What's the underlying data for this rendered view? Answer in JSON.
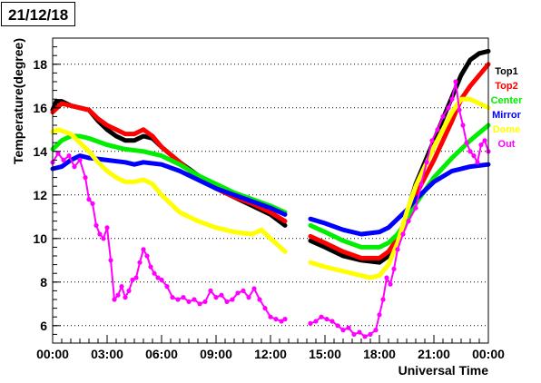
{
  "chart_data": {
    "type": "scatter",
    "title": "21/12/18",
    "xlabel": "Universal Time",
    "ylabel": "Temperature(degree)",
    "x_unit": "hours UT",
    "xlim": [
      0,
      24
    ],
    "ylim": [
      5.2,
      19.2
    ],
    "x_ticks": [
      0,
      3,
      6,
      9,
      12,
      15,
      18,
      21,
      24
    ],
    "x_tick_labels": [
      "00:00",
      "03:00",
      "06:00",
      "09:00",
      "12:00",
      "15:00",
      "18:00",
      "21:00",
      "00:00"
    ],
    "y_ticks": [
      6,
      8,
      10,
      12,
      14,
      16,
      18
    ],
    "y_tick_labels": [
      "6",
      "8",
      "10",
      "12",
      "14",
      "16",
      "18"
    ],
    "grid": "horizontal dotted",
    "legend": "right, outside plot",
    "series": [
      {
        "name": "Top1",
        "color": "#000000",
        "x": [
          0,
          0.2,
          0.5,
          1,
          1.5,
          2,
          2.5,
          3,
          3.5,
          4,
          4.5,
          5,
          5.5,
          6,
          7,
          8,
          9,
          10,
          11,
          12,
          12.8,
          null,
          14.2,
          15,
          16,
          17,
          18,
          18.5,
          19,
          19.5,
          20,
          21,
          22,
          22.5,
          23,
          23.5,
          24
        ],
        "y": [
          15.9,
          16.3,
          16.3,
          16.1,
          16.0,
          15.9,
          15.4,
          15.0,
          14.7,
          14.5,
          14.5,
          14.7,
          14.6,
          14.2,
          13.5,
          12.9,
          12.3,
          11.9,
          11.5,
          11.1,
          10.6,
          null,
          9.9,
          9.6,
          9.2,
          9.0,
          8.9,
          9.2,
          9.9,
          11.1,
          12.5,
          14.5,
          16.5,
          17.5,
          18.2,
          18.5,
          18.6
        ]
      },
      {
        "name": "Top2",
        "color": "#ff0000",
        "x": [
          0,
          0.5,
          1,
          1.5,
          2,
          2.5,
          3,
          3.5,
          4,
          4.5,
          5,
          5.5,
          6,
          7,
          8,
          9,
          10,
          11,
          12,
          12.8,
          null,
          14.2,
          15,
          16,
          17,
          18,
          18.5,
          19,
          19.5,
          20,
          21,
          22,
          22.5,
          23,
          23.5,
          24
        ],
        "y": [
          15.8,
          16.2,
          16.1,
          16.0,
          15.9,
          15.5,
          15.2,
          15.0,
          14.8,
          14.8,
          15.0,
          14.7,
          14.2,
          13.5,
          12.8,
          12.3,
          11.9,
          11.6,
          11.2,
          10.8,
          null,
          10.1,
          9.8,
          9.4,
          9.1,
          9.1,
          9.4,
          10.0,
          10.9,
          12.0,
          13.6,
          15.4,
          16.4,
          17.0,
          17.5,
          18.0
        ]
      },
      {
        "name": "Center",
        "color": "#00ee00",
        "x": [
          0,
          0.5,
          1,
          1.5,
          2,
          3,
          4,
          5,
          6,
          7,
          8,
          9,
          10,
          11,
          12,
          12.8,
          null,
          14.2,
          15,
          16,
          17,
          18,
          18.5,
          19,
          19.5,
          20,
          21,
          22,
          23,
          24
        ],
        "y": [
          14.1,
          14.5,
          14.7,
          14.7,
          14.6,
          14.3,
          14.1,
          14.0,
          13.8,
          13.4,
          12.9,
          12.5,
          12.1,
          11.8,
          11.5,
          11.2,
          null,
          10.6,
          10.3,
          9.9,
          9.6,
          9.6,
          9.8,
          10.2,
          10.8,
          11.6,
          12.8,
          13.7,
          14.5,
          15.2
        ]
      },
      {
        "name": "Mirror",
        "color": "#0000ff",
        "x": [
          0,
          0.5,
          1,
          1.5,
          2,
          3,
          4,
          4.5,
          5,
          6,
          7,
          8,
          9,
          10,
          11,
          12,
          12.8,
          null,
          14.2,
          15,
          16,
          17,
          18,
          18.5,
          19,
          19.5,
          20,
          21,
          22,
          23,
          24
        ],
        "y": [
          13.2,
          13.3,
          13.6,
          13.8,
          13.7,
          13.6,
          13.5,
          13.4,
          13.5,
          13.4,
          13.1,
          12.7,
          12.3,
          12.0,
          11.7,
          11.4,
          11.1,
          null,
          10.9,
          10.7,
          10.4,
          10.2,
          10.3,
          10.5,
          10.9,
          11.3,
          11.8,
          12.6,
          13.1,
          13.3,
          13.4
        ]
      },
      {
        "name": "Dome",
        "color": "#ffff00",
        "x": [
          0,
          0.3,
          1,
          1.5,
          2,
          2.5,
          3,
          3.5,
          4,
          4.5,
          5,
          5.5,
          6,
          7,
          8,
          9,
          10,
          11,
          11.5,
          12,
          12.8,
          null,
          14.2,
          15,
          16,
          17,
          17.5,
          18,
          18.5,
          19,
          19.5,
          20,
          21,
          22,
          22.5,
          23,
          23.5,
          24
        ],
        "y": [
          14.9,
          15.0,
          14.8,
          14.4,
          14.0,
          13.5,
          13.1,
          12.8,
          12.6,
          12.6,
          12.7,
          12.5,
          12.0,
          11.2,
          10.8,
          10.5,
          10.3,
          10.2,
          10.4,
          10.0,
          9.4,
          null,
          8.9,
          8.7,
          8.5,
          8.3,
          8.2,
          8.3,
          8.8,
          9.8,
          11.2,
          12.4,
          14.2,
          15.8,
          16.4,
          16.4,
          16.2,
          16.0
        ]
      },
      {
        "name": "Out",
        "color": "#ff00ff",
        "x": [
          0,
          0.3,
          0.6,
          0.9,
          1.2,
          1.5,
          1.8,
          2.0,
          2.2,
          2.4,
          2.6,
          2.8,
          3.0,
          3.2,
          3.4,
          3.6,
          3.8,
          4.0,
          4.2,
          4.4,
          4.6,
          4.8,
          5.0,
          5.2,
          5.4,
          5.6,
          5.8,
          6.0,
          6.3,
          6.6,
          6.9,
          7.2,
          7.5,
          7.8,
          8.1,
          8.4,
          8.7,
          9.0,
          9.3,
          9.6,
          9.9,
          10.2,
          10.5,
          10.8,
          11.1,
          11.4,
          11.7,
          12.0,
          12.3,
          12.6,
          12.8,
          null,
          14.2,
          14.5,
          14.8,
          15.1,
          15.4,
          15.7,
          16.0,
          16.3,
          16.6,
          16.9,
          17.2,
          17.5,
          17.8,
          18.0,
          18.2,
          18.4,
          18.6,
          18.8,
          19.0,
          19.3,
          19.6,
          20.0,
          20.3,
          20.6,
          20.9,
          21.2,
          21.5,
          21.8,
          22.0,
          22.2,
          22.4,
          22.6,
          22.8,
          23.0,
          23.2,
          23.4,
          23.6,
          23.8,
          24.0
        ],
        "y": [
          13.5,
          13.9,
          13.6,
          13.8,
          13.3,
          13.6,
          12.8,
          11.8,
          11.6,
          10.6,
          10.2,
          10.0,
          10.5,
          9.0,
          7.2,
          7.4,
          7.8,
          7.3,
          7.6,
          8.1,
          8.2,
          8.9,
          9.5,
          9.2,
          8.7,
          8.4,
          8.2,
          8.1,
          7.8,
          7.3,
          7.2,
          7.3,
          7.1,
          7.2,
          7.0,
          7.1,
          7.6,
          7.3,
          7.4,
          7.1,
          7.2,
          7.5,
          7.6,
          7.3,
          7.7,
          7.2,
          6.8,
          6.4,
          6.3,
          6.2,
          6.3,
          null,
          6.1,
          6.2,
          6.4,
          6.3,
          6.2,
          6.0,
          5.8,
          5.9,
          5.6,
          5.7,
          5.5,
          5.6,
          5.8,
          6.5,
          7.2,
          8.2,
          7.9,
          8.6,
          9.5,
          10.2,
          10.8,
          11.4,
          12.5,
          13.5,
          14.5,
          15.0,
          15.6,
          16.0,
          16.4,
          17.2,
          15.9,
          15.2,
          14.4,
          14.0,
          13.8,
          13.5,
          14.3,
          14.5,
          14.0
        ]
      }
    ]
  }
}
